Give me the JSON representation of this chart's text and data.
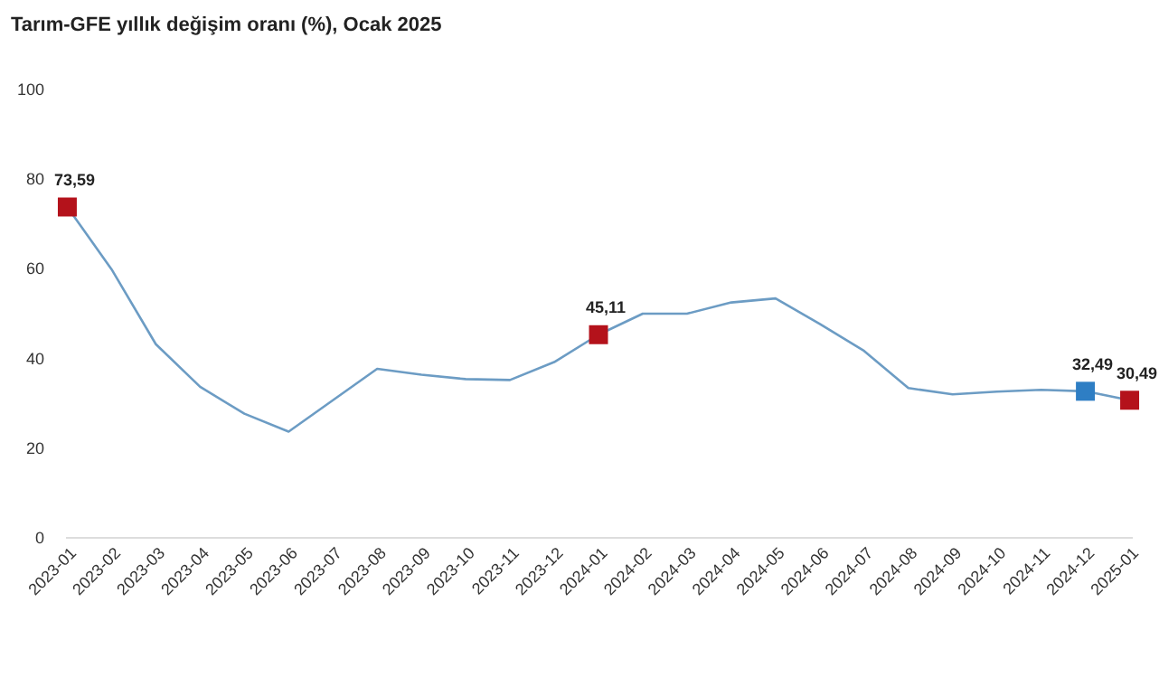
{
  "chart_data": {
    "type": "line",
    "title": "Tarım-GFE yıllık değişim oranı (%), Ocak 2025",
    "categories": [
      "2023-01",
      "2023-02",
      "2023-03",
      "2023-04",
      "2023-05",
      "2023-06",
      "2023-07",
      "2023-08",
      "2023-09",
      "2023-10",
      "2023-11",
      "2023-12",
      "2024-01",
      "2024-02",
      "2024-03",
      "2024-04",
      "2024-05",
      "2024-06",
      "2024-07",
      "2024-08",
      "2024-09",
      "2024-10",
      "2024-11",
      "2024-12",
      "2025-01"
    ],
    "series": [
      {
        "color": "#6c9cc4",
        "values": [
          73.59,
          59.7,
          43,
          33.5,
          27.5,
          23.5,
          30.5,
          37.5,
          36.2,
          35.2,
          35,
          39,
          45.11,
          49.8,
          49.8,
          52.3,
          53.2,
          47.5,
          41.5,
          33.2,
          31.8,
          32.4,
          32.8,
          32.49,
          30.49
        ]
      },
      {
        "type": "scatter",
        "marker": "square",
        "colors": [
          "#b4121b",
          null,
          null,
          null,
          null,
          null,
          null,
          null,
          null,
          null,
          null,
          null,
          "#b4121b",
          null,
          null,
          null,
          null,
          null,
          null,
          null,
          null,
          null,
          null,
          "#2e7ec4",
          "#b4121b"
        ],
        "values": [
          73.59,
          null,
          null,
          null,
          null,
          null,
          null,
          null,
          null,
          null,
          null,
          null,
          45.11,
          null,
          null,
          null,
          null,
          null,
          null,
          null,
          null,
          null,
          null,
          32.49,
          30.49
        ],
        "value_labels": [
          "73,59",
          null,
          null,
          null,
          null,
          null,
          null,
          null,
          null,
          null,
          null,
          null,
          "45,11",
          null,
          null,
          null,
          null,
          null,
          null,
          null,
          null,
          null,
          null,
          "32,49",
          "30,49"
        ]
      }
    ],
    "ylim": [
      0,
      100
    ],
    "yticks": [
      0,
      20,
      40,
      60,
      80,
      100
    ],
    "grid": false
  }
}
